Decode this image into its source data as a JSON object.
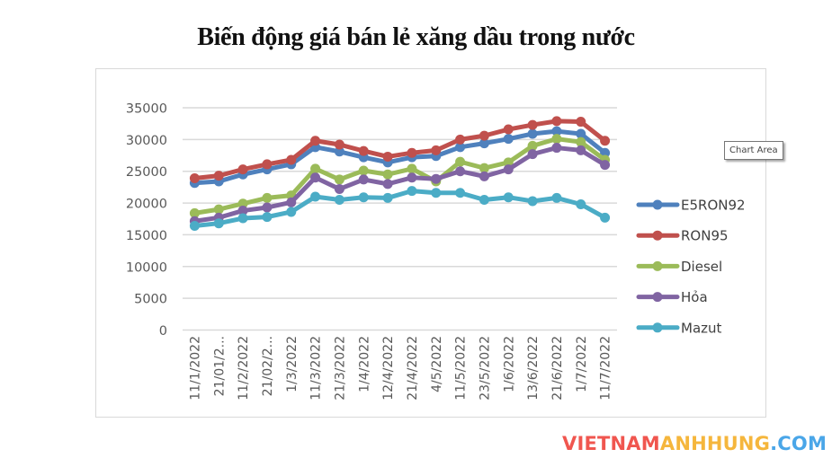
{
  "chart_data": {
    "type": "line",
    "title": "Biến động giá bán lẻ xăng dầu trong nước",
    "xlabel": "",
    "ylabel": "",
    "ylim": [
      0,
      35000
    ],
    "yticks": [
      0,
      5000,
      10000,
      15000,
      20000,
      25000,
      30000,
      35000
    ],
    "grid": true,
    "legend_position": "right",
    "categories": [
      "11/1/2022",
      "21/01/2...",
      "11/2/2022",
      "21/02/2...",
      "1/3/2022",
      "11/3/2022",
      "21/3/2022",
      "1/4/2022",
      "12/4/2022",
      "21/4/2022",
      "4/5/2022",
      "11/5/2022",
      "23/5/2022",
      "1/6/2022",
      "13/6/2022",
      "21/6/2022",
      "1/7/2022",
      "11/7/2022"
    ],
    "series": [
      {
        "name": "E5RON92",
        "color": "#4f81bd",
        "values": [
          23150,
          23400,
          24500,
          25300,
          26100,
          28800,
          28100,
          27200,
          26400,
          27200,
          27400,
          28800,
          29400,
          30100,
          30900,
          31300,
          30900,
          27900
        ]
      },
      {
        "name": "RON95",
        "color": "#c0504d",
        "values": [
          23900,
          24300,
          25300,
          26100,
          26800,
          29800,
          29200,
          28200,
          27300,
          27900,
          28300,
          30000,
          30600,
          31600,
          32300,
          32900,
          32800,
          29800
        ]
      },
      {
        "name": "Diesel",
        "color": "#9bbb59",
        "values": [
          18400,
          19000,
          19900,
          20800,
          21200,
          25400,
          23700,
          25100,
          24500,
          25400,
          23400,
          26500,
          25500,
          26400,
          29000,
          30100,
          29600,
          26800
        ]
      },
      {
        "name": "Hỏa",
        "color": "#8064a2",
        "values": [
          17150,
          17700,
          18800,
          19300,
          20100,
          24000,
          22200,
          23700,
          23000,
          24000,
          23800,
          25000,
          24200,
          25300,
          27700,
          28700,
          28300,
          26000
        ]
      },
      {
        "name": "Mazut",
        "color": "#4bacc6",
        "values": [
          16400,
          16800,
          17600,
          17800,
          18600,
          21000,
          20500,
          20900,
          20800,
          21900,
          21600,
          21600,
          20500,
          20900,
          20300,
          20800,
          19800,
          17700
        ]
      }
    ]
  },
  "tooltip": {
    "label": "Chart Area"
  },
  "watermark": {
    "part1": "VIETNAM",
    "part2": "ANHHUNG",
    "part3": ".COM"
  }
}
